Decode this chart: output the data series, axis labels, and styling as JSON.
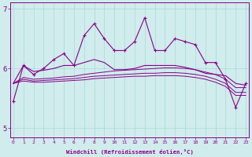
{
  "xlabel": "Windchill (Refroidissement éolien,°C)",
  "x": [
    0,
    1,
    2,
    3,
    4,
    5,
    6,
    7,
    8,
    9,
    10,
    11,
    12,
    13,
    14,
    15,
    16,
    17,
    18,
    19,
    20,
    21,
    22,
    23
  ],
  "line_jagged": [
    5.45,
    6.05,
    5.9,
    6.0,
    6.15,
    6.25,
    6.05,
    6.55,
    6.75,
    6.5,
    6.3,
    6.3,
    6.45,
    6.85,
    6.3,
    6.3,
    6.5,
    6.45,
    6.4,
    6.1,
    6.1,
    5.82,
    5.35,
    5.75
  ],
  "line_a": [
    5.75,
    6.05,
    5.95,
    5.97,
    6.0,
    6.05,
    6.05,
    6.1,
    6.15,
    6.1,
    5.98,
    5.98,
    6.0,
    6.05,
    6.05,
    6.05,
    6.05,
    6.02,
    5.98,
    5.92,
    5.9,
    5.88,
    5.75,
    5.72
  ],
  "line_b": [
    5.75,
    5.85,
    5.82,
    5.83,
    5.84,
    5.86,
    5.87,
    5.9,
    5.92,
    5.94,
    5.96,
    5.97,
    5.98,
    5.99,
    6.0,
    6.01,
    6.01,
    6.0,
    5.98,
    5.94,
    5.9,
    5.82,
    5.68,
    5.68
  ],
  "line_c": [
    5.75,
    5.82,
    5.79,
    5.8,
    5.81,
    5.82,
    5.83,
    5.85,
    5.87,
    5.88,
    5.89,
    5.9,
    5.91,
    5.92,
    5.92,
    5.93,
    5.93,
    5.92,
    5.9,
    5.87,
    5.82,
    5.75,
    5.6,
    5.6
  ],
  "line_d": [
    5.75,
    5.79,
    5.77,
    5.77,
    5.78,
    5.79,
    5.8,
    5.81,
    5.83,
    5.84,
    5.85,
    5.86,
    5.87,
    5.87,
    5.88,
    5.88,
    5.88,
    5.87,
    5.85,
    5.82,
    5.77,
    5.7,
    5.55,
    5.55
  ],
  "bg_color": "#d0ecec",
  "grid_color": "#a8d8d8",
  "line_color": "#880088",
  "ylim": [
    4.85,
    7.1
  ],
  "yticks": [
    5,
    6,
    7
  ],
  "xlim": [
    -0.3,
    23.3
  ]
}
